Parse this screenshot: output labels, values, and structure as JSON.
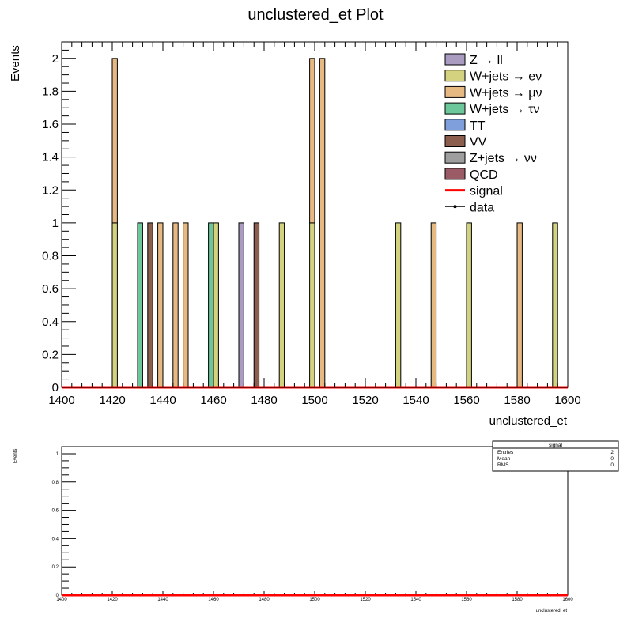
{
  "main_plot": {
    "title": "unclustered_et Plot",
    "xlabel": "unclustered_et",
    "ylabel": "Events"
  },
  "chart_data": [
    {
      "type": "bar",
      "stacked": true,
      "title": "unclustered_et Plot",
      "xlabel": "unclustered_et",
      "ylabel": "Events",
      "xlim": [
        1400,
        1600
      ],
      "ylim": [
        0,
        2.1
      ],
      "bin_width": 2,
      "x_ticks": [
        "1400",
        "1420",
        "1440",
        "1460",
        "1480",
        "1500",
        "1520",
        "1540",
        "1560",
        "1580",
        "1600"
      ],
      "y_ticks": [
        "0",
        "0.2",
        "0.4",
        "0.6",
        "0.8",
        "1",
        "1.2",
        "1.4",
        "1.6",
        "1.8",
        "2"
      ],
      "grid": false,
      "legend_position": "top-right",
      "legend": [
        {
          "label": "Z → ll",
          "color": "#a99cc0",
          "kind": "box"
        },
        {
          "label": "W+jets → eν",
          "color": "#d4d17f",
          "kind": "box"
        },
        {
          "label": "W+jets → μν",
          "color": "#e6b882",
          "kind": "box"
        },
        {
          "label": "W+jets → τν",
          "color": "#6cc79a",
          "kind": "box"
        },
        {
          "label": "TT",
          "color": "#7e9fdb",
          "kind": "box"
        },
        {
          "label": "VV",
          "color": "#8b5e4e",
          "kind": "box"
        },
        {
          "label": "Z+jets → νν",
          "color": "#9e9e9e",
          "kind": "box"
        },
        {
          "label": "QCD",
          "color": "#9b5b66",
          "kind": "box"
        },
        {
          "label": "signal",
          "color": "#ff0000",
          "kind": "line"
        },
        {
          "label": "data",
          "color": "#000000",
          "kind": "marker"
        }
      ],
      "bars": [
        {
          "x": 1420,
          "segments": [
            {
              "series": "W+jets → eν",
              "value": 1
            },
            {
              "series": "W+jets → μν",
              "value": 1
            }
          ]
        },
        {
          "x": 1430,
          "segments": [
            {
              "series": "W+jets → τν",
              "value": 1
            }
          ]
        },
        {
          "x": 1434,
          "segments": [
            {
              "series": "VV",
              "value": 1
            }
          ]
        },
        {
          "x": 1438,
          "segments": [
            {
              "series": "W+jets → μν",
              "value": 1
            }
          ]
        },
        {
          "x": 1444,
          "segments": [
            {
              "series": "W+jets → μν",
              "value": 1
            }
          ]
        },
        {
          "x": 1448,
          "segments": [
            {
              "series": "W+jets → μν",
              "value": 1
            }
          ]
        },
        {
          "x": 1458,
          "segments": [
            {
              "series": "W+jets → τν",
              "value": 1
            }
          ]
        },
        {
          "x": 1460,
          "segments": [
            {
              "series": "W+jets → eν",
              "value": 1
            }
          ]
        },
        {
          "x": 1470,
          "segments": [
            {
              "series": "Z → ll",
              "value": 1
            }
          ]
        },
        {
          "x": 1476,
          "segments": [
            {
              "series": "VV",
              "value": 1
            }
          ]
        },
        {
          "x": 1486,
          "segments": [
            {
              "series": "W+jets → eν",
              "value": 1
            }
          ]
        },
        {
          "x": 1498,
          "segments": [
            {
              "series": "W+jets → eν",
              "value": 1
            },
            {
              "series": "W+jets → μν",
              "value": 1
            }
          ]
        },
        {
          "x": 1502,
          "segments": [
            {
              "series": "W+jets → μν",
              "value": 2
            }
          ]
        },
        {
          "x": 1532,
          "segments": [
            {
              "series": "W+jets → eν",
              "value": 1
            }
          ]
        },
        {
          "x": 1546,
          "segments": [
            {
              "series": "W+jets → μν",
              "value": 1
            }
          ]
        },
        {
          "x": 1560,
          "segments": [
            {
              "series": "W+jets → eν",
              "value": 1
            }
          ]
        },
        {
          "x": 1580,
          "segments": [
            {
              "series": "W+jets → μν",
              "value": 1
            }
          ]
        },
        {
          "x": 1594,
          "segments": [
            {
              "series": "W+jets → eν",
              "value": 1
            }
          ]
        }
      ],
      "signal_line": {
        "value": 0,
        "color": "#ff0000"
      }
    },
    {
      "type": "line",
      "title": "",
      "xlabel": "unclustered_et",
      "ylabel": "Events",
      "xlim": [
        1400,
        1600
      ],
      "ylim": [
        0,
        1.05
      ],
      "x_ticks": [
        "1400",
        "1420",
        "1440",
        "1460",
        "1480",
        "1500",
        "1520",
        "1540",
        "1560",
        "1580",
        "1600"
      ],
      "y_ticks": [
        "0",
        "0.2",
        "0.4",
        "0.6",
        "0.8",
        "1"
      ],
      "series": [
        {
          "name": "signal",
          "x": [
            1400,
            1600
          ],
          "values": [
            0,
            0
          ],
          "color": "#ff0000"
        }
      ],
      "stats_box": {
        "title": "signal",
        "rows": [
          {
            "label": "Entries",
            "value": "2"
          },
          {
            "label": "Mean",
            "value": "0"
          },
          {
            "label": "RMS",
            "value": "0"
          }
        ]
      }
    }
  ]
}
